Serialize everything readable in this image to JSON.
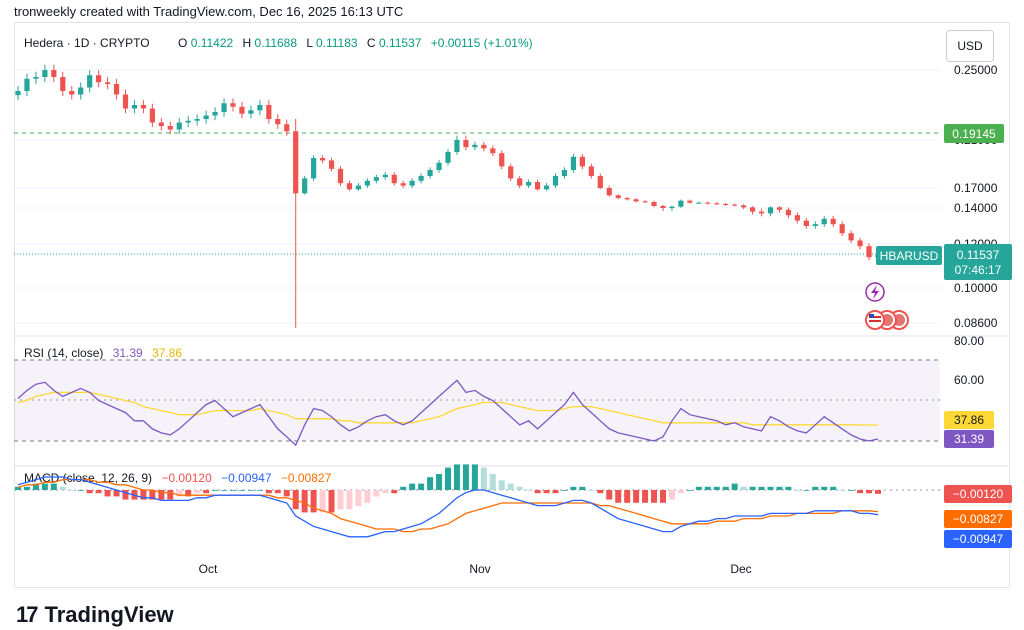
{
  "header": {
    "credit": "tronweekly created with TradingView.com, Dec 16, 2025 16:13 UTC"
  },
  "brand": {
    "logo_glyph": "17",
    "name": "TradingView"
  },
  "price_pane": {
    "symbol": "Hedera · 1D · CRYPTO",
    "o_label": "O",
    "open": "0.11422",
    "h_label": "H",
    "high": "0.11688",
    "l_label": "L",
    "low": "0.11183",
    "c_label": "C",
    "close": "0.11537",
    "change": "+0.00115 (+1.01%)",
    "currency": "USD",
    "ticker_tag": "HBARUSD",
    "last_price": "0.11537",
    "countdown": "07:46:17",
    "level_price": "0.19145",
    "level_color": "#4caf50",
    "axis_ticks": [
      "0.25000",
      "0.21000",
      "0.17000",
      "0.14000",
      "0.12000",
      "0.10000",
      "0.08600"
    ],
    "up_color": "#26a69a",
    "down_color": "#ef5350",
    "icons": [
      "lightning-icon",
      "us-flag-icon",
      "us-flag-icon",
      "us-flag-icon"
    ]
  },
  "rsi_pane": {
    "title": "RSI (14, close)",
    "rsi": "31.39",
    "ma": "37.86",
    "axis_ticks": [
      "80.00",
      "60.00"
    ],
    "rsi_color": "#7e57c2",
    "ma_color": "#fdd835"
  },
  "macd_pane": {
    "title": "MACD (close, 12, 26, 9)",
    "hist": "−0.00120",
    "macd": "−0.00947",
    "signal": "−0.00827",
    "macd_color": "#2962ff",
    "signal_color": "#ff6d00"
  },
  "x_axis": {
    "labels": [
      "Oct",
      "Nov",
      "Dec"
    ]
  },
  "chart_data": {
    "type": "candlestick",
    "close_series": [
      0.238,
      0.245,
      0.246,
      0.25,
      0.246,
      0.238,
      0.236,
      0.24,
      0.247,
      0.243,
      0.242,
      0.236,
      0.228,
      0.23,
      0.228,
      0.22,
      0.218,
      0.216,
      0.22,
      0.221,
      0.222,
      0.224,
      0.226,
      0.231,
      0.229,
      0.225,
      0.227,
      0.23,
      0.222,
      0.219,
      0.215,
      0.162,
      0.178,
      0.195,
      0.193,
      0.186,
      0.174,
      0.168,
      0.172,
      0.176,
      0.179,
      0.181,
      0.174,
      0.172,
      0.176,
      0.18,
      0.185,
      0.191,
      0.2,
      0.21,
      0.204,
      0.206,
      0.203,
      0.199,
      0.188,
      0.178,
      0.172,
      0.175,
      0.168,
      0.172,
      0.18,
      0.185,
      0.196,
      0.188,
      0.18,
      0.17,
      0.159,
      0.155,
      0.153,
      0.15,
      0.149,
      0.143,
      0.14,
      0.142,
      0.151,
      0.148,
      0.148,
      0.147,
      0.146,
      0.145,
      0.144,
      0.141,
      0.138,
      0.137,
      0.141,
      0.139,
      0.136,
      0.133,
      0.13,
      0.131,
      0.134,
      0.131,
      0.126,
      0.122,
      0.119,
      0.114,
      0.115
    ],
    "rsi_series": [
      51,
      55,
      58,
      59,
      55,
      52,
      54,
      56,
      54,
      50,
      48,
      46,
      44,
      40,
      40,
      36,
      34,
      33,
      36,
      40,
      44,
      48,
      50,
      46,
      42,
      44,
      46,
      48,
      42,
      36,
      32,
      28,
      38,
      46,
      45,
      42,
      38,
      35,
      37,
      40,
      42,
      43,
      40,
      38,
      40,
      44,
      48,
      52,
      56,
      60,
      54,
      55,
      52,
      50,
      46,
      42,
      38,
      40,
      36,
      40,
      44,
      48,
      54,
      48,
      44,
      40,
      36,
      34,
      33,
      32,
      31,
      30,
      32,
      40,
      46,
      43,
      42,
      41,
      40,
      38,
      39,
      37,
      36,
      35,
      42,
      40,
      37,
      35,
      34,
      38,
      42,
      39,
      36,
      33,
      31,
      30,
      31
    ],
    "rsi_ma_series": [
      49,
      50,
      52,
      53,
      54,
      54,
      54,
      54,
      54,
      53,
      52,
      51,
      50,
      49,
      47,
      46,
      45,
      44,
      43,
      43,
      43,
      44,
      45,
      45,
      45,
      45,
      45,
      46,
      45,
      44,
      43,
      41,
      41,
      41,
      41,
      41,
      40,
      40,
      39,
      39,
      39,
      39,
      39,
      39,
      39,
      40,
      41,
      42,
      44,
      46,
      47,
      48,
      49,
      49,
      49,
      48,
      47,
      46,
      45,
      45,
      45,
      46,
      47,
      47,
      47,
      46,
      45,
      44,
      43,
      42,
      41,
      40,
      39,
      39,
      39,
      39,
      39,
      39,
      39,
      39,
      39,
      39,
      38,
      38,
      38,
      38,
      38,
      38,
      38,
      38,
      38,
      38,
      38,
      38,
      37.9,
      37.9,
      37.86
    ],
    "macd_series": [
      0.002,
      0.003,
      0.004,
      0.005,
      0.005,
      0.005,
      0.004,
      0.004,
      0.003,
      0.002,
      0.001,
      0.0,
      -0.001,
      -0.002,
      -0.003,
      -0.003,
      -0.004,
      -0.004,
      -0.004,
      -0.004,
      -0.003,
      -0.003,
      -0.002,
      -0.002,
      -0.002,
      -0.002,
      -0.002,
      -0.002,
      -0.003,
      -0.004,
      -0.005,
      -0.01,
      -0.012,
      -0.014,
      -0.015,
      -0.016,
      -0.017,
      -0.018,
      -0.018,
      -0.018,
      -0.017,
      -0.016,
      -0.016,
      -0.015,
      -0.014,
      -0.013,
      -0.011,
      -0.009,
      -0.006,
      -0.003,
      -0.001,
      0.0,
      0.0,
      -0.001,
      -0.002,
      -0.003,
      -0.004,
      -0.005,
      -0.006,
      -0.006,
      -0.006,
      -0.005,
      -0.004,
      -0.004,
      -0.005,
      -0.007,
      -0.009,
      -0.011,
      -0.012,
      -0.013,
      -0.014,
      -0.015,
      -0.016,
      -0.016,
      -0.014,
      -0.013,
      -0.012,
      -0.012,
      -0.011,
      -0.011,
      -0.01,
      -0.01,
      -0.01,
      -0.01,
      -0.009,
      -0.009,
      -0.009,
      -0.009,
      -0.009,
      -0.008,
      -0.008,
      -0.008,
      -0.008,
      -0.008,
      -0.009,
      -0.009,
      -0.0095
    ],
    "signal_series": [
      0.001,
      0.002,
      0.002,
      0.003,
      0.003,
      0.004,
      0.004,
      0.004,
      0.004,
      0.003,
      0.003,
      0.002,
      0.002,
      0.001,
      0.0,
      0.0,
      -0.001,
      -0.001,
      -0.002,
      -0.002,
      -0.002,
      -0.002,
      -0.002,
      -0.002,
      -0.002,
      -0.002,
      -0.002,
      -0.002,
      -0.002,
      -0.003,
      -0.003,
      -0.004,
      -0.005,
      -0.007,
      -0.008,
      -0.009,
      -0.011,
      -0.012,
      -0.013,
      -0.014,
      -0.015,
      -0.015,
      -0.015,
      -0.016,
      -0.016,
      -0.015,
      -0.015,
      -0.014,
      -0.013,
      -0.011,
      -0.009,
      -0.008,
      -0.007,
      -0.006,
      -0.005,
      -0.005,
      -0.005,
      -0.005,
      -0.005,
      -0.005,
      -0.005,
      -0.005,
      -0.005,
      -0.005,
      -0.005,
      -0.006,
      -0.006,
      -0.007,
      -0.008,
      -0.009,
      -0.01,
      -0.011,
      -0.012,
      -0.013,
      -0.013,
      -0.013,
      -0.013,
      -0.013,
      -0.012,
      -0.012,
      -0.012,
      -0.011,
      -0.011,
      -0.011,
      -0.01,
      -0.01,
      -0.01,
      -0.009,
      -0.009,
      -0.009,
      -0.009,
      -0.009,
      -0.008,
      -0.008,
      -0.008,
      -0.008,
      -0.0083
    ]
  }
}
